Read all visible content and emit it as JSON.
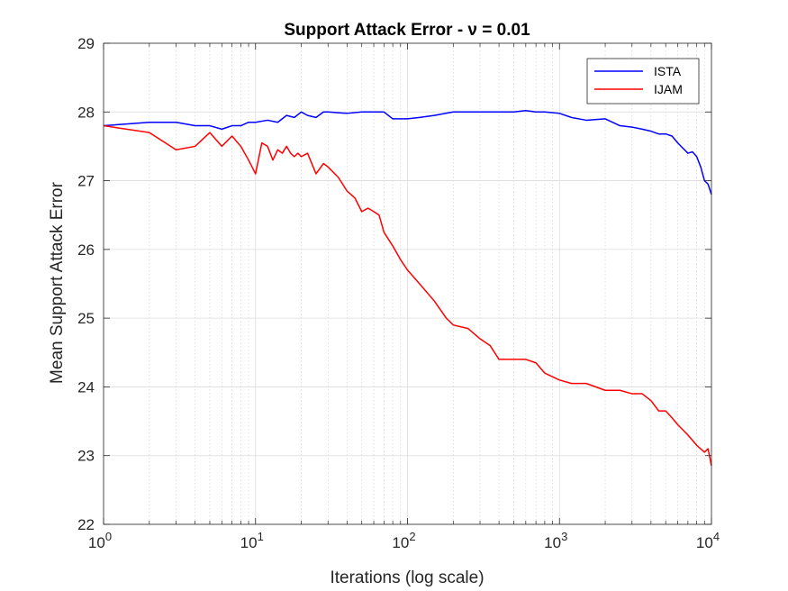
{
  "chart_data": {
    "type": "line",
    "title": "Support Attack Error - ν = 0.01",
    "xlabel": "Iterations (log scale)",
    "ylabel": "Mean Support Attack Error",
    "x_scale": "log",
    "xlim": [
      1,
      10000
    ],
    "ylim": [
      22,
      29
    ],
    "x_ticks": [
      {
        "base": "10",
        "exp": "0"
      },
      {
        "base": "10",
        "exp": "1"
      },
      {
        "base": "10",
        "exp": "2"
      },
      {
        "base": "10",
        "exp": "3"
      },
      {
        "base": "10",
        "exp": "4"
      }
    ],
    "y_ticks": [
      "22",
      "23",
      "24",
      "25",
      "26",
      "27",
      "28",
      "29"
    ],
    "grid": true,
    "legend_position": "top-right",
    "series": [
      {
        "name": "ISTA",
        "color": "#0000ff",
        "x": [
          1,
          2,
          3,
          4,
          5,
          6,
          7,
          8,
          9,
          10,
          12,
          14,
          16,
          18,
          20,
          22,
          25,
          28,
          30,
          40,
          50,
          60,
          70,
          80,
          100,
          120,
          150,
          200,
          300,
          400,
          500,
          600,
          700,
          800,
          1000,
          1200,
          1500,
          2000,
          2500,
          3000,
          3500,
          4000,
          4500,
          5000,
          5500,
          6000,
          7000,
          7500,
          8000,
          8500,
          9000,
          9500,
          10000
        ],
        "y": [
          27.8,
          27.85,
          27.85,
          27.8,
          27.8,
          27.75,
          27.8,
          27.8,
          27.85,
          27.85,
          27.88,
          27.85,
          27.95,
          27.92,
          28.0,
          27.95,
          27.92,
          28.0,
          28.0,
          27.98,
          28.0,
          28.0,
          28.0,
          27.9,
          27.9,
          27.92,
          27.95,
          28.0,
          28.0,
          28.0,
          28.0,
          28.02,
          28.0,
          28.0,
          27.98,
          27.92,
          27.88,
          27.9,
          27.8,
          27.78,
          27.75,
          27.72,
          27.68,
          27.68,
          27.65,
          27.55,
          27.4,
          27.42,
          27.35,
          27.2,
          27.0,
          26.95,
          26.8
        ]
      },
      {
        "name": "IJAM",
        "color": "#ff0000",
        "x": [
          1,
          2,
          3,
          4,
          5,
          6,
          7,
          8,
          9,
          10,
          11,
          12,
          13,
          14,
          15,
          16,
          17,
          18,
          19,
          20,
          22,
          25,
          28,
          30,
          35,
          40,
          45,
          50,
          55,
          60,
          65,
          70,
          80,
          90,
          100,
          120,
          150,
          180,
          200,
          250,
          300,
          350,
          400,
          500,
          600,
          700,
          800,
          1000,
          1200,
          1500,
          2000,
          2500,
          3000,
          3500,
          4000,
          4500,
          5000,
          5500,
          6000,
          7000,
          8000,
          9000,
          9500,
          10000
        ],
        "y": [
          27.8,
          27.7,
          27.45,
          27.5,
          27.7,
          27.5,
          27.65,
          27.5,
          27.3,
          27.1,
          27.55,
          27.5,
          27.3,
          27.45,
          27.4,
          27.5,
          27.4,
          27.35,
          27.4,
          27.35,
          27.4,
          27.1,
          27.25,
          27.2,
          27.05,
          26.85,
          26.75,
          26.55,
          26.6,
          26.55,
          26.5,
          26.25,
          26.05,
          25.85,
          25.7,
          25.5,
          25.25,
          25.0,
          24.9,
          24.85,
          24.7,
          24.6,
          24.4,
          24.4,
          24.4,
          24.35,
          24.2,
          24.1,
          24.05,
          24.05,
          23.95,
          23.95,
          23.9,
          23.9,
          23.8,
          23.65,
          23.65,
          23.55,
          23.45,
          23.3,
          23.15,
          23.05,
          23.1,
          22.85
        ]
      }
    ]
  }
}
